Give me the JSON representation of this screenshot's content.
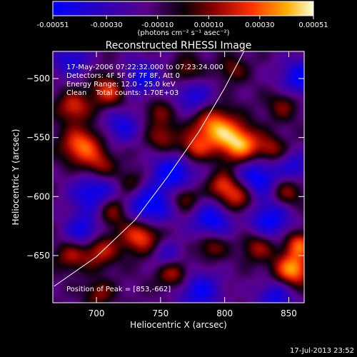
{
  "colorbar": {
    "tick_labels": [
      "-0.00051",
      "-0.00030",
      "-0.00010",
      "0.00010",
      "0.00030",
      "0.00051"
    ],
    "tick_values": [
      -0.00051,
      -0.0003,
      -0.0001,
      0.0001,
      0.0003,
      0.00051
    ],
    "range": [
      -0.00051,
      0.00051
    ],
    "units": "(photons cm⁻² s⁻¹ asec⁻²)"
  },
  "plot": {
    "title": "Reconstructed RHESSI Image",
    "annotations": [
      "17-May-2006 07:22:32.000 to 07:23:24.000",
      "Detectors: 4F 5F 6F 7F 8F, Att 0",
      "Energy Range: 12.0 - 25.0 keV",
      "Clean    Total counts: 1.70E+03"
    ],
    "peak_label": "Position of Peak = [853,-662]"
  },
  "axes": {
    "xlabel": "Heliocentric X (arcsec)",
    "ylabel": "Heliocentric Y (arcsec)",
    "xlim": [
      666,
      862
    ],
    "ylim": [
      -690,
      -477
    ],
    "x_ticks": [
      700,
      750,
      800,
      850
    ],
    "y_ticks": [
      -500,
      -550,
      -600,
      -650
    ],
    "x_tick_labels": [
      "700",
      "750",
      "800",
      "850"
    ],
    "y_tick_labels": [
      "−500",
      "−550",
      "−600",
      "−650"
    ]
  },
  "footer": {
    "timestamp": "17-Jul-2013 23:52"
  },
  "colors": {
    "background": "#000000",
    "text": "#ffffff",
    "limb": "#ffffff"
  },
  "chart_data": {
    "type": "heatmap",
    "title": "Reconstructed RHESSI Image",
    "xlabel": "Heliocentric X (arcsec)",
    "ylabel": "Heliocentric Y (arcsec)",
    "xlim": [
      666,
      862
    ],
    "ylim": [
      -690,
      -477
    ],
    "value_range": [
      -0.00051,
      0.00051
    ],
    "peak": [
      853,
      -662
    ],
    "limb_points": [
      [
        667,
        -676
      ],
      [
        700,
        -651
      ],
      [
        730,
        -620
      ],
      [
        755,
        -584
      ],
      [
        780,
        -545
      ],
      [
        800,
        -508
      ],
      [
        815,
        -477
      ]
    ],
    "blobs": [
      [
        812,
        -556,
        1.0,
        11
      ],
      [
        792,
        -542,
        0.95,
        12
      ],
      [
        776,
        -560,
        0.6,
        8
      ],
      [
        853,
        -662,
        1.0,
        10
      ],
      [
        858,
        -640,
        0.75,
        8
      ],
      [
        826,
        -642,
        0.55,
        9
      ],
      [
        811,
        -600,
        0.75,
        10
      ],
      [
        798,
        -590,
        0.6,
        8
      ],
      [
        848,
        -596,
        0.55,
        9
      ],
      [
        735,
        -632,
        0.9,
        11
      ],
      [
        712,
        -610,
        0.75,
        10
      ],
      [
        702,
        -645,
        0.65,
        10
      ],
      [
        680,
        -650,
        0.5,
        9
      ],
      [
        688,
        -557,
        0.85,
        11
      ],
      [
        703,
        -575,
        0.55,
        9
      ],
      [
        710,
        -510,
        0.7,
        10
      ],
      [
        682,
        -524,
        0.65,
        9
      ],
      [
        752,
        -550,
        0.5,
        9
      ],
      [
        760,
        -665,
        0.65,
        9
      ],
      [
        702,
        -682,
        0.45,
        8
      ],
      [
        769,
        -601,
        0.55,
        8
      ],
      [
        727,
        -588,
        0.45,
        8
      ],
      [
        836,
        -560,
        0.5,
        8
      ],
      [
        846,
        -522,
        0.45,
        9
      ],
      [
        771,
        -493,
        0.45,
        8
      ],
      [
        806,
        -492,
        0.4,
        8
      ],
      [
        790,
        -642,
        0.5,
        8
      ],
      [
        748,
        -528,
        0.4,
        8
      ],
      [
        700,
        -598,
        -0.85,
        13
      ],
      [
        740,
        -610,
        -0.9,
        13
      ],
      [
        760,
        -580,
        -0.8,
        12
      ],
      [
        825,
        -585,
        -0.85,
        12
      ],
      [
        835,
        -620,
        -0.75,
        12
      ],
      [
        790,
        -620,
        -0.75,
        11
      ],
      [
        780,
        -680,
        -0.7,
        12
      ],
      [
        840,
        -685,
        -0.65,
        10
      ],
      [
        735,
        -500,
        -0.7,
        11
      ],
      [
        860,
        -500,
        -0.75,
        12
      ],
      [
        690,
        -630,
        -0.7,
        10
      ],
      [
        776,
        -515,
        -0.6,
        10
      ],
      [
        720,
        -540,
        -0.6,
        10
      ],
      [
        680,
        -485,
        -0.6,
        10
      ],
      [
        855,
        -575,
        -0.55,
        9
      ],
      [
        755,
        -650,
        -0.5,
        9
      ]
    ]
  }
}
